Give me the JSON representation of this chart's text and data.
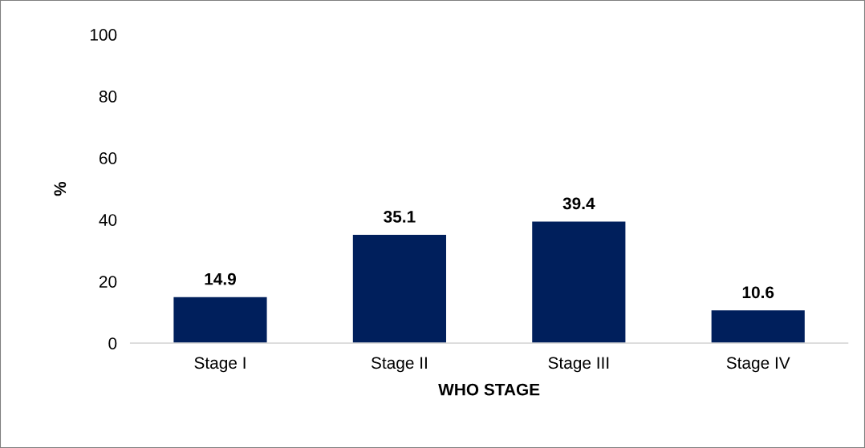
{
  "chart_data": {
    "type": "bar",
    "xlabel": "WHO STAGE",
    "ylabel": "%",
    "categories": [
      "Stage I",
      "Stage II",
      "Stage III",
      "Stage IV"
    ],
    "series": [
      {
        "color": "#001f5c",
        "values": [
          14.9,
          35.1,
          39.4,
          10.6
        ]
      }
    ],
    "ylim": [
      0,
      100
    ],
    "yticks": [
      0,
      20,
      40,
      60,
      80,
      100
    ],
    "grid": false,
    "data_labels": true
  }
}
